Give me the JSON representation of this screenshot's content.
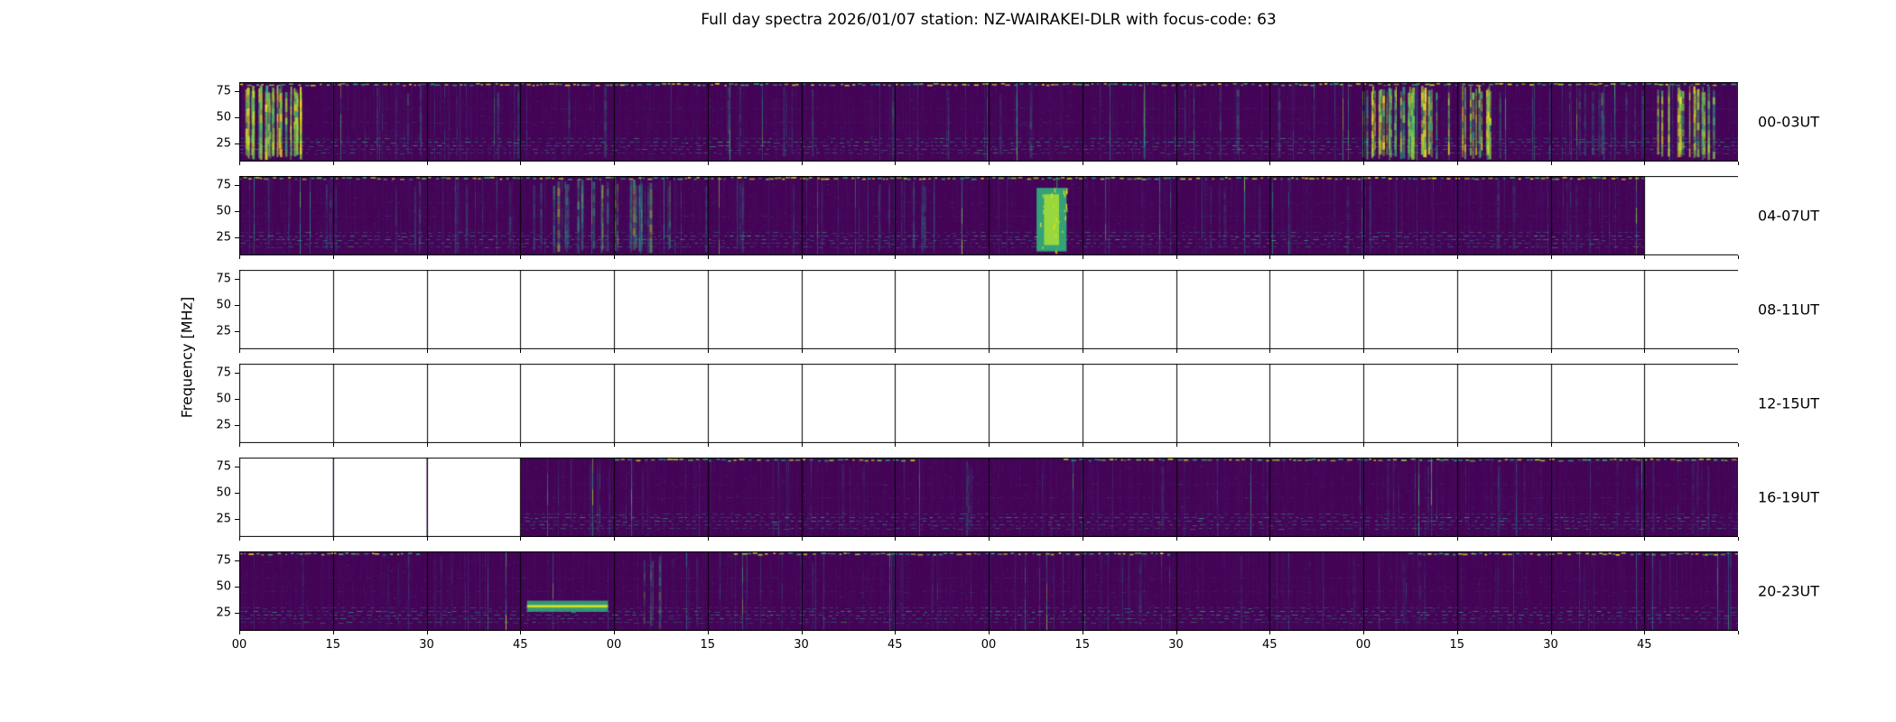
{
  "title": "Full day spectra 2026/01/07 station: NZ-WAIRAKEI-DLR with focus-code: 63",
  "ylabel": "Frequency [MHz]",
  "chart_data": {
    "type": "heatmap",
    "subtype": "spectrogram-grid",
    "title": "Full day spectra 2026/01/07 station: NZ-WAIRAKEI-DLR with focus-code: 63",
    "date": "2026/01/07",
    "station": "NZ-WAIRAKEI-DLR",
    "focus_code": 63,
    "ylabel": "Frequency [MHz]",
    "y_ticks": [
      25,
      50,
      75
    ],
    "x_tick_labels": [
      "00",
      "15",
      "30",
      "45",
      "00",
      "15",
      "30",
      "45",
      "00",
      "15",
      "30",
      "45",
      "00",
      "15",
      "30",
      "45"
    ],
    "panels_per_row": 16,
    "minutes_per_panel": 15,
    "colormap": "viridis",
    "colors": {
      "background": "#440154",
      "teal": "#21918c",
      "green": "#5ec962",
      "yellow": "#fde725",
      "blank": "#ffffff",
      "frame": "#000000"
    },
    "rows": [
      {
        "label": "00-03UT",
        "blank_panels": [],
        "top_band": [
          [
            0,
            1
          ]
        ],
        "features": [
          {
            "type": "streaks",
            "x0": 0.004,
            "x1": 0.044,
            "count": 28,
            "lvl0": 0.72,
            "lvl1": 1.0,
            "alpha": 0.95
          },
          {
            "type": "streaks",
            "x0": 0.05,
            "x1": 0.74,
            "count": 26,
            "lvl0": 0.32,
            "lvl1": 0.58,
            "alpha": 0.35
          },
          {
            "type": "streaks",
            "x0": 0.748,
            "x1": 0.802,
            "count": 30,
            "lvl0": 0.6,
            "lvl1": 1.0,
            "alpha": 0.9
          },
          {
            "type": "streaks",
            "x0": 0.806,
            "x1": 0.835,
            "count": 14,
            "lvl0": 0.7,
            "lvl1": 1.0,
            "alpha": 0.95
          },
          {
            "type": "streaks",
            "x0": 0.84,
            "x1": 0.94,
            "count": 12,
            "lvl0": 0.38,
            "lvl1": 0.62,
            "alpha": 0.45
          },
          {
            "type": "streaks",
            "x0": 0.945,
            "x1": 0.985,
            "count": 18,
            "lvl0": 0.62,
            "lvl1": 1.0,
            "alpha": 0.9
          }
        ]
      },
      {
        "label": "04-07UT",
        "blank_panels": [
          15
        ],
        "top_band": [
          [
            0,
            1
          ]
        ],
        "features": [
          {
            "type": "streaks",
            "x0": 0.01,
            "x1": 0.5,
            "count": 40,
            "lvl0": 0.28,
            "lvl1": 0.52,
            "alpha": 0.4
          },
          {
            "type": "streaks",
            "x0": 0.205,
            "x1": 0.295,
            "count": 18,
            "lvl0": 0.5,
            "lvl1": 0.85,
            "alpha": 0.6
          },
          {
            "type": "blob",
            "x0": 0.532,
            "x1": 0.552,
            "y0": 0.15,
            "y1": 0.95,
            "lvl": 0.78
          },
          {
            "type": "streaks",
            "x0": 0.56,
            "x1": 0.93,
            "count": 18,
            "lvl0": 0.28,
            "lvl1": 0.48,
            "alpha": 0.3
          }
        ]
      },
      {
        "label": "08-11UT",
        "blank_panels": [
          0,
          1,
          2,
          3,
          4,
          5,
          6,
          7,
          8,
          9,
          10,
          11,
          12,
          13,
          14,
          15
        ],
        "top_band": [],
        "features": []
      },
      {
        "label": "12-15UT",
        "blank_panels": [
          0,
          1,
          2,
          3,
          4,
          5,
          6,
          7,
          8,
          9,
          10,
          11,
          12,
          13,
          14,
          15
        ],
        "top_band": [],
        "features": []
      },
      {
        "label": "16-19UT",
        "blank_panels": [
          0,
          1,
          2
        ],
        "top_band": [
          [
            0.25,
            0.45
          ],
          [
            0.55,
            1.0
          ]
        ],
        "features": [
          {
            "type": "streaks",
            "x0": 0.2,
            "x1": 0.98,
            "count": 26,
            "lvl0": 0.22,
            "lvl1": 0.42,
            "alpha": 0.28
          },
          {
            "type": "streaks",
            "x0": 0.485,
            "x1": 0.492,
            "count": 3,
            "lvl0": 0.45,
            "lvl1": 0.6,
            "alpha": 0.5
          }
        ]
      },
      {
        "label": "20-23UT",
        "blank_panels": [],
        "top_band": [
          [
            0,
            0.12
          ],
          [
            0.33,
            0.62
          ],
          [
            0.78,
            1.0
          ]
        ],
        "features": [
          {
            "type": "hband",
            "x0": 0.192,
            "x1": 0.246,
            "y0": 0.62,
            "y1": 0.76,
            "lvl": 0.82
          },
          {
            "type": "streaks",
            "x0": 0.268,
            "x1": 0.282,
            "count": 4,
            "lvl0": 0.45,
            "lvl1": 0.7,
            "alpha": 0.55
          },
          {
            "type": "streaks",
            "x0": 0.02,
            "x1": 0.97,
            "count": 30,
            "lvl0": 0.2,
            "lvl1": 0.4,
            "alpha": 0.25
          }
        ]
      }
    ]
  }
}
